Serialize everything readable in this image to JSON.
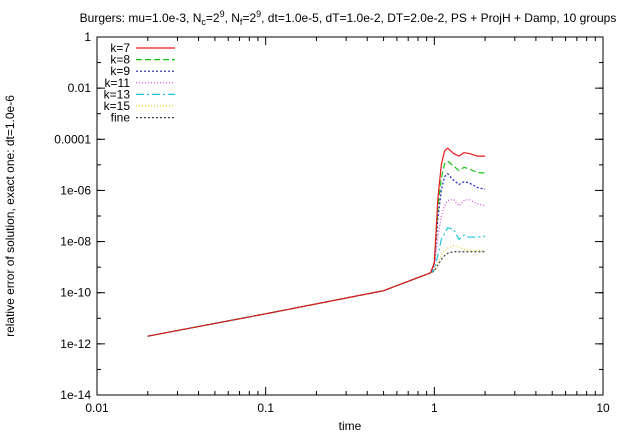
{
  "chart_data": {
    "type": "line",
    "title_parts": [
      {
        "t": "Burgers: mu=1.0e-3, N",
        "sub": false,
        "sup": false
      },
      {
        "t": "c",
        "sub": true,
        "sup": false
      },
      {
        "t": "=2",
        "sub": false,
        "sup": false
      },
      {
        "t": "9",
        "sub": false,
        "sup": true
      },
      {
        "t": ", N",
        "sub": false,
        "sup": false
      },
      {
        "t": "f",
        "sub": true,
        "sup": false
      },
      {
        "t": "=2",
        "sub": false,
        "sup": false
      },
      {
        "t": "9",
        "sub": false,
        "sup": true
      },
      {
        "t": ", dt=1.0e-5, dT=1.0e-2, DT=2.0e-2, PS + ProjH + Damp, 10 groups",
        "sub": false,
        "sup": false
      }
    ],
    "xlabel": "time",
    "ylabel": "relative error of solution, exact one: dt=1.0e-6",
    "xscale": "log",
    "yscale": "log",
    "xlim": [
      0.01,
      10
    ],
    "ylim": [
      1e-14,
      1
    ],
    "xticks": [
      {
        "v": 0.01,
        "label": "0.01"
      },
      {
        "v": 0.1,
        "label": "0.1"
      },
      {
        "v": 1,
        "label": "1"
      },
      {
        "v": 10,
        "label": "10"
      }
    ],
    "yticks": [
      {
        "v": 1,
        "label": "1"
      },
      {
        "v": 0.01,
        "label": "0.01"
      },
      {
        "v": 0.0001,
        "label": "0.0001"
      },
      {
        "v": 1e-06,
        "label": "1e-06"
      },
      {
        "v": 1e-08,
        "label": "1e-08"
      },
      {
        "v": 1e-10,
        "label": "1e-10"
      },
      {
        "v": 1e-12,
        "label": "1e-12"
      },
      {
        "v": 1e-14,
        "label": "1e-14"
      }
    ],
    "legend_position": "top-left",
    "grid": false,
    "series": [
      {
        "name": "k=7",
        "color": "#e41a1c",
        "dash": "",
        "x": [
          0.02,
          0.1,
          0.5,
          0.95,
          1.0,
          1.05,
          1.1,
          1.15,
          1.2,
          1.3,
          1.4,
          1.5,
          1.6,
          1.8,
          2.0
        ],
        "y": [
          2e-12,
          1.5e-11,
          1.2e-10,
          6e-10,
          1.5e-09,
          5e-07,
          1e-05,
          3.5e-05,
          4.5e-05,
          2.8e-05,
          2.2e-05,
          3e-05,
          2.8e-05,
          2.2e-05,
          2.2e-05
        ]
      },
      {
        "name": "k=8",
        "color": "#17c417",
        "dash": "6,3",
        "x": [
          0.02,
          0.1,
          0.5,
          0.95,
          1.0,
          1.05,
          1.1,
          1.15,
          1.2,
          1.3,
          1.4,
          1.5,
          1.6,
          1.8,
          2.0
        ],
        "y": [
          2e-12,
          1.5e-11,
          1.2e-10,
          6e-10,
          1.4e-09,
          2e-07,
          3e-06,
          1.1e-05,
          1.4e-05,
          9e-06,
          6e-06,
          8e-06,
          7e-06,
          5e-06,
          4.8e-06
        ]
      },
      {
        "name": "k=9",
        "color": "#2020c8",
        "dash": "2,2",
        "x": [
          0.02,
          0.1,
          0.5,
          0.95,
          1.0,
          1.05,
          1.1,
          1.15,
          1.2,
          1.3,
          1.4,
          1.5,
          1.6,
          1.8,
          2.0
        ],
        "y": [
          2e-12,
          1.5e-11,
          1.2e-10,
          6e-10,
          1.3e-09,
          8e-08,
          1e-06,
          3.5e-06,
          4.5e-06,
          2.5e-06,
          1.7e-06,
          2.2e-06,
          2e-06,
          1.3e-06,
          1.1e-06
        ]
      },
      {
        "name": "k=11",
        "color": "#e040e0",
        "dash": "1,2",
        "x": [
          0.02,
          0.1,
          0.5,
          0.95,
          1.0,
          1.05,
          1.1,
          1.15,
          1.2,
          1.3,
          1.4,
          1.5,
          1.6,
          1.8,
          2.0
        ],
        "y": [
          2e-12,
          1.5e-11,
          1.2e-10,
          6e-10,
          1e-09,
          1.5e-08,
          1e-07,
          2.5e-07,
          4e-07,
          4.5e-07,
          2.5e-07,
          4e-07,
          4.5e-07,
          3e-07,
          2.5e-07
        ]
      },
      {
        "name": "k=13",
        "color": "#20c8d8",
        "dash": "8,3,2,3",
        "x": [
          0.02,
          0.1,
          0.5,
          0.95,
          1.0,
          1.05,
          1.1,
          1.15,
          1.2,
          1.3,
          1.4,
          1.5,
          1.6,
          1.8,
          2.0
        ],
        "y": [
          2e-12,
          1.5e-11,
          1.2e-10,
          6e-10,
          8e-10,
          3e-09,
          1.2e-08,
          2e-08,
          3.5e-08,
          3e-08,
          1.2e-08,
          1.8e-08,
          1.5e-08,
          1.5e-08,
          1.6e-08
        ]
      },
      {
        "name": "k=15",
        "color": "#e0d020",
        "dash": "1,2",
        "x": [
          0.02,
          0.1,
          0.5,
          0.95,
          1.0,
          1.05,
          1.1,
          1.15,
          1.2,
          1.3,
          1.4,
          1.5,
          1.6,
          1.8,
          2.0
        ],
        "y": [
          2e-12,
          1.5e-11,
          1.2e-10,
          6e-10,
          7.5e-10,
          1.5e-09,
          3e-09,
          4.5e-09,
          5.5e-09,
          7e-09,
          6e-09,
          5e-09,
          4.5e-09,
          4.5e-09,
          4.5e-09
        ]
      },
      {
        "name": "fine",
        "color": "#404040",
        "dash": "2,2",
        "x": [
          0.02,
          0.1,
          0.5,
          0.95,
          1.0,
          1.05,
          1.1,
          1.15,
          1.2,
          1.3,
          1.4,
          1.5,
          1.6,
          1.8,
          2.0
        ],
        "y": [
          2e-12,
          1.5e-11,
          1.2e-10,
          6e-10,
          7e-10,
          1.2e-09,
          2e-09,
          2.8e-09,
          3.5e-09,
          4e-09,
          4e-09,
          4e-09,
          4e-09,
          4e-09,
          4e-09
        ]
      }
    ]
  }
}
